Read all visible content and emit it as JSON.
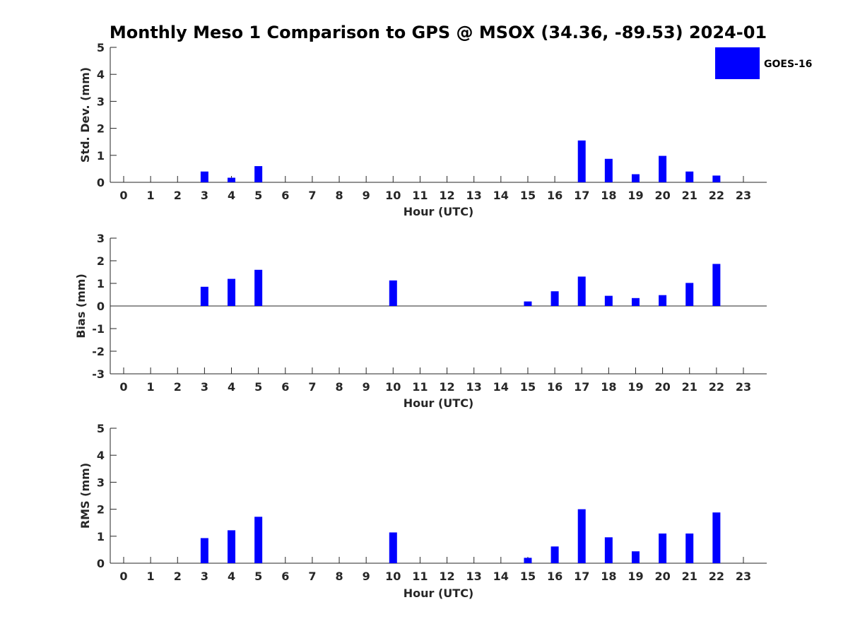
{
  "chart_data": {
    "title": "Monthly Meso 1 Comparison to GPS @ MSOX (34.36, -89.53) 2024-01",
    "legend": {
      "label": "GOES-16",
      "color": "#0000ff",
      "placement": "top-right"
    },
    "bar_color": "#0000ff",
    "grid": false,
    "panels": [
      {
        "type": "bar",
        "xlabel": "Hour (UTC)",
        "ylabel": "Std. Dev. (mm)",
        "ylim": [
          0,
          5
        ],
        "yticks": [
          "0",
          "1",
          "2",
          "3",
          "4",
          "5"
        ],
        "categories": [
          "0",
          "1",
          "2",
          "3",
          "4",
          "5",
          "6",
          "7",
          "8",
          "9",
          "10",
          "11",
          "12",
          "13",
          "14",
          "15",
          "16",
          "17",
          "18",
          "19",
          "20",
          "21",
          "22",
          "23"
        ],
        "values": [
          null,
          null,
          null,
          0.4,
          0.17,
          0.6,
          null,
          null,
          null,
          null,
          null,
          null,
          null,
          null,
          null,
          null,
          null,
          1.55,
          0.87,
          0.3,
          0.98,
          0.4,
          0.25,
          null
        ]
      },
      {
        "type": "bar",
        "xlabel": "Hour (UTC)",
        "ylabel": "Bias (mm)",
        "ylim": [
          -3,
          3
        ],
        "yticks": [
          "-3",
          "-2",
          "-1",
          "0",
          "1",
          "2",
          "3"
        ],
        "categories": [
          "0",
          "1",
          "2",
          "3",
          "4",
          "5",
          "6",
          "7",
          "8",
          "9",
          "10",
          "11",
          "12",
          "13",
          "14",
          "15",
          "16",
          "17",
          "18",
          "19",
          "20",
          "21",
          "22",
          "23"
        ],
        "values": [
          null,
          null,
          null,
          0.85,
          1.2,
          1.6,
          null,
          null,
          null,
          null,
          1.13,
          null,
          null,
          null,
          null,
          0.2,
          0.65,
          1.3,
          0.45,
          0.35,
          0.48,
          1.02,
          1.86,
          null
        ]
      },
      {
        "type": "bar",
        "xlabel": "Hour (UTC)",
        "ylabel": "RMS (mm)",
        "ylim": [
          0,
          5
        ],
        "yticks": [
          "0",
          "1",
          "2",
          "3",
          "4",
          "5"
        ],
        "categories": [
          "0",
          "1",
          "2",
          "3",
          "4",
          "5",
          "6",
          "7",
          "8",
          "9",
          "10",
          "11",
          "12",
          "13",
          "14",
          "15",
          "16",
          "17",
          "18",
          "19",
          "20",
          "21",
          "22",
          "23"
        ],
        "values": [
          null,
          null,
          null,
          0.93,
          1.22,
          1.72,
          null,
          null,
          null,
          null,
          1.14,
          null,
          null,
          null,
          null,
          0.2,
          0.62,
          2.0,
          0.96,
          0.44,
          1.1,
          1.1,
          1.88,
          null
        ]
      }
    ]
  }
}
